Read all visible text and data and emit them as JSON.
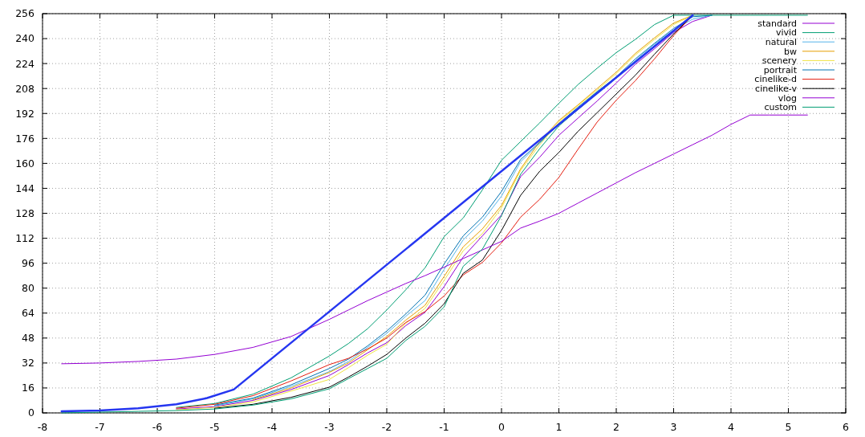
{
  "chart_data": {
    "type": "line",
    "x": [
      -7.667,
      -7,
      -6.333,
      -5.667,
      -5,
      -4.333,
      -3.667,
      -3,
      -2.667,
      -2.333,
      -2,
      -1.667,
      -1.333,
      -1,
      -0.667,
      -0.333,
      0,
      0.333,
      0.667,
      1,
      1.333,
      1.667,
      2,
      2.333,
      2.667,
      3,
      3.333,
      3.667,
      4,
      4.333,
      4.667,
      5,
      5.333
    ],
    "xlim": [
      -8,
      6
    ],
    "xticks": [
      -8,
      -7,
      -6,
      -5,
      -4,
      -3,
      -2,
      -1,
      0,
      1,
      2,
      3,
      4,
      5,
      6
    ],
    "ylim": [
      0,
      256
    ],
    "yticks": [
      0,
      16,
      32,
      48,
      64,
      80,
      96,
      112,
      128,
      144,
      160,
      176,
      192,
      208,
      224,
      240,
      256
    ],
    "grid": true,
    "legend": "top right",
    "series": [
      {
        "name": "standard",
        "color": "#9400d3",
        "values": [
          null,
          null,
          null,
          2.5,
          4,
          8,
          15,
          24,
          31,
          38.5,
          45,
          56,
          64.5,
          81,
          100,
          113.5,
          127,
          151.5,
          164,
          178,
          189,
          200,
          211.5,
          223.5,
          233.5,
          244,
          251,
          255,
          null,
          null,
          null,
          null,
          null
        ]
      },
      {
        "name": "vivid",
        "color": "#009e73",
        "values": [
          null,
          null,
          null,
          3.5,
          6,
          12,
          22.5,
          36.5,
          44.5,
          54,
          66,
          79,
          93,
          113,
          125,
          143,
          162,
          174,
          186,
          198.5,
          210.5,
          221,
          231,
          239.5,
          249,
          255,
          255,
          null,
          null,
          null,
          null,
          null,
          null
        ]
      },
      {
        "name": "natural",
        "color": "#56b4e9",
        "values": [
          null,
          null,
          null,
          null,
          4.5,
          9,
          17,
          26.5,
          33,
          42,
          51,
          62,
          72,
          92,
          111,
          123,
          139,
          161,
          173,
          185,
          195,
          206,
          215,
          226,
          236.5,
          245.5,
          252.5,
          255,
          null,
          null,
          null,
          null,
          null
        ]
      },
      {
        "name": "bw",
        "color": "#e69f00",
        "values": [
          null,
          null,
          null,
          null,
          null,
          8.5,
          16,
          26,
          32,
          40.5,
          49,
          59.5,
          69,
          87.5,
          106.5,
          118,
          133,
          156.5,
          174,
          187.5,
          197.5,
          208,
          218.5,
          230.5,
          240.5,
          250,
          255,
          null,
          null,
          null,
          null,
          null,
          null
        ]
      },
      {
        "name": "scenery",
        "color": "#f0e442",
        "values": [
          null,
          null,
          null,
          2,
          3.5,
          7,
          14,
          21.5,
          29,
          37,
          44,
          57.5,
          67,
          85,
          104,
          115,
          131.5,
          155.5,
          172,
          186.5,
          197,
          207,
          217.5,
          229.5,
          239.5,
          249,
          255,
          null,
          null,
          null,
          null,
          null,
          null
        ]
      },
      {
        "name": "portrait",
        "color": "#0072b2",
        "values": [
          null,
          null,
          null,
          null,
          5,
          9.5,
          18,
          28.5,
          34.5,
          43,
          52.5,
          63.5,
          75.5,
          95.5,
          113.5,
          125.5,
          142,
          162.5,
          173.5,
          185.5,
          196,
          206,
          215.5,
          227,
          237,
          246.5,
          254,
          255,
          null,
          null,
          null,
          null,
          null
        ]
      },
      {
        "name": "cinelike-d",
        "color": "#e51e10",
        "values": [
          null,
          null,
          null,
          3,
          5.5,
          11,
          20.5,
          31,
          35,
          41,
          48,
          58,
          65,
          75,
          88.5,
          96.5,
          109,
          125.5,
          137,
          151,
          169,
          186.5,
          200.5,
          213,
          227,
          242,
          255,
          null,
          null,
          null,
          null,
          null,
          null
        ]
      },
      {
        "name": "cinelike-v",
        "color": "#000000",
        "values": [
          null,
          null,
          null,
          null,
          3,
          5.5,
          10,
          16.5,
          23,
          30,
          37.5,
          48,
          57.5,
          70,
          89.5,
          98,
          117,
          139.5,
          155,
          167,
          180.5,
          192.5,
          204.5,
          216.5,
          230,
          243,
          255,
          null,
          null,
          null,
          null,
          null,
          null
        ]
      },
      {
        "name": "vlog",
        "color": "#9400d3",
        "values": [
          31.5,
          32,
          33,
          34.5,
          37.5,
          42,
          49,
          60,
          66,
          72,
          77.5,
          83,
          88,
          93.5,
          99,
          104.5,
          110,
          118.5,
          123,
          128,
          134.5,
          141,
          147.5,
          154,
          160,
          166,
          172,
          178,
          185,
          191,
          191,
          191,
          191
        ]
      },
      {
        "name": "custom",
        "color": "#009e73",
        "values": [
          0,
          0.5,
          1,
          1.5,
          2.5,
          5,
          9,
          15.5,
          22,
          28.5,
          35,
          46.5,
          55.5,
          68,
          94,
          105,
          126.5,
          153,
          169.5,
          184,
          194.5,
          205,
          215,
          225,
          235.5,
          245,
          255,
          255,
          255,
          255,
          255,
          255,
          255
        ]
      },
      {
        "color": "#2536f0",
        "x": [
          -7.667,
          -7,
          -6.333,
          -5.667,
          -5.133,
          -4.667,
          3.333
        ],
        "values": [
          1,
          1.5,
          3,
          5.5,
          9.5,
          15,
          255
        ]
      }
    ]
  }
}
